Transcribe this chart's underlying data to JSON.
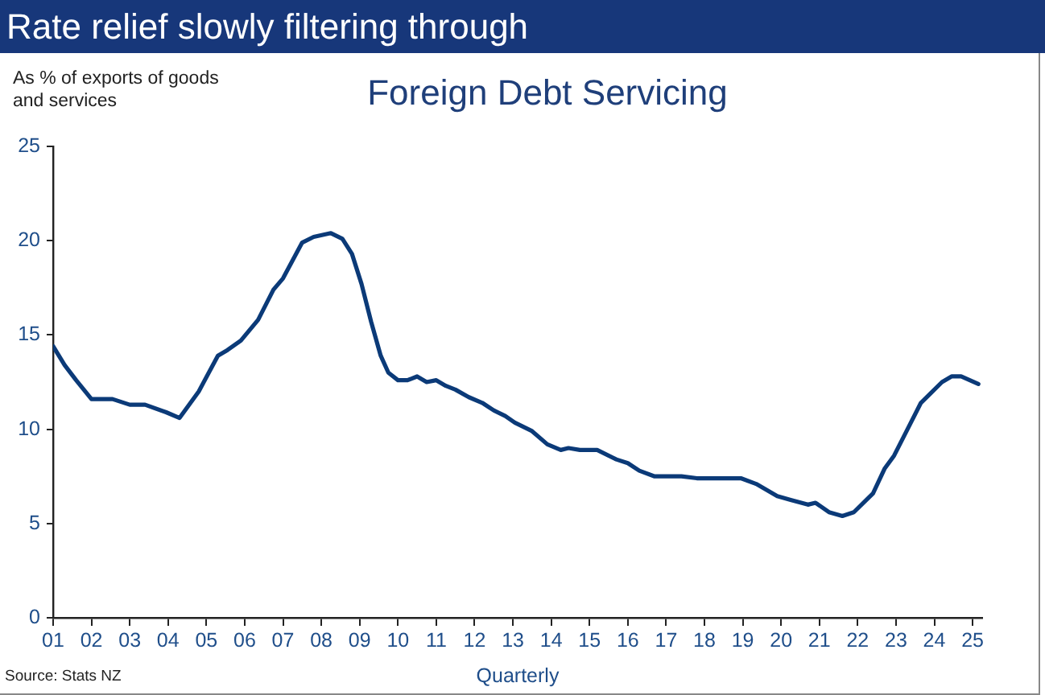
{
  "chart_data": {
    "type": "line",
    "title": "Rate relief slowly filtering through",
    "subtitle": "Foreign Debt Servicing",
    "ylabel": "As % of exports of goods and services",
    "xlabel": "Quarterly",
    "annotations": [
      "Source: Stats NZ"
    ],
    "x": [
      2001.0,
      2001.3,
      2001.6,
      2001.8,
      2002.0,
      2002.55,
      2003.0,
      2003.4,
      2003.95,
      2004.3,
      2004.8,
      2005.3,
      2005.55,
      2005.9,
      2006.35,
      2006.75,
      2007.0,
      2007.5,
      2007.8,
      2008.25,
      2008.55,
      2008.8,
      2009.05,
      2009.3,
      2009.55,
      2009.75,
      2010.0,
      2010.25,
      2010.5,
      2010.75,
      2011.0,
      2011.25,
      2011.5,
      2011.85,
      2012.2,
      2012.5,
      2012.8,
      2013.05,
      2013.5,
      2013.9,
      2014.25,
      2014.45,
      2014.75,
      2015.2,
      2015.7,
      2016.0,
      2016.3,
      2016.7,
      2017.4,
      2017.8,
      2018.95,
      2019.35,
      2019.9,
      2020.25,
      2020.7,
      2020.9,
      2021.25,
      2021.6,
      2021.9,
      2022.4,
      2022.7,
      2022.95,
      2023.3,
      2023.65,
      2023.9,
      2024.2,
      2024.45,
      2024.7,
      2025.15
    ],
    "series": [
      {
        "color": "#0b3a78",
        "values": [
          14.4,
          13.4,
          12.6,
          12.1,
          11.6,
          11.6,
          11.3,
          11.3,
          10.9,
          10.6,
          12.0,
          13.9,
          14.2,
          14.7,
          15.8,
          17.4,
          18.0,
          19.9,
          20.2,
          20.4,
          20.1,
          19.3,
          17.7,
          15.7,
          13.9,
          13.0,
          12.6,
          12.6,
          12.8,
          12.5,
          12.6,
          12.3,
          12.1,
          11.7,
          11.4,
          11.0,
          10.7,
          10.35,
          9.9,
          9.2,
          8.9,
          9.0,
          8.9,
          8.9,
          8.4,
          8.2,
          7.8,
          7.5,
          7.5,
          7.4,
          7.4,
          7.1,
          6.45,
          6.25,
          6.0,
          6.1,
          5.6,
          5.4,
          5.6,
          6.6,
          7.9,
          8.6,
          10.0,
          11.4,
          11.9,
          12.5,
          12.8,
          12.8,
          12.4
        ]
      }
    ],
    "xlim": [
      2001,
      2025.25
    ],
    "xticks": [
      {
        "value": 2001,
        "label": "01"
      },
      {
        "value": 2002,
        "label": "02"
      },
      {
        "value": 2003,
        "label": "03"
      },
      {
        "value": 2004,
        "label": "04"
      },
      {
        "value": 2005,
        "label": "05"
      },
      {
        "value": 2006,
        "label": "06"
      },
      {
        "value": 2007,
        "label": "07"
      },
      {
        "value": 2008,
        "label": "08"
      },
      {
        "value": 2009,
        "label": "09"
      },
      {
        "value": 2010,
        "label": "10"
      },
      {
        "value": 2011,
        "label": "11"
      },
      {
        "value": 2012,
        "label": "12"
      },
      {
        "value": 2013,
        "label": "13"
      },
      {
        "value": 2014,
        "label": "14"
      },
      {
        "value": 2015,
        "label": "15"
      },
      {
        "value": 2016,
        "label": "16"
      },
      {
        "value": 2017,
        "label": "17"
      },
      {
        "value": 2018,
        "label": "18"
      },
      {
        "value": 2019,
        "label": "19"
      },
      {
        "value": 2020,
        "label": "20"
      },
      {
        "value": 2021,
        "label": "21"
      },
      {
        "value": 2022,
        "label": "22"
      },
      {
        "value": 2023,
        "label": "23"
      },
      {
        "value": 2024,
        "label": "24"
      },
      {
        "value": 2025,
        "label": "25"
      }
    ],
    "ylim": [
      0,
      25
    ],
    "yticks": [
      0,
      5,
      10,
      15,
      20,
      25
    ],
    "grid": false,
    "legend": false,
    "marker": "none",
    "line_style": "solid"
  }
}
